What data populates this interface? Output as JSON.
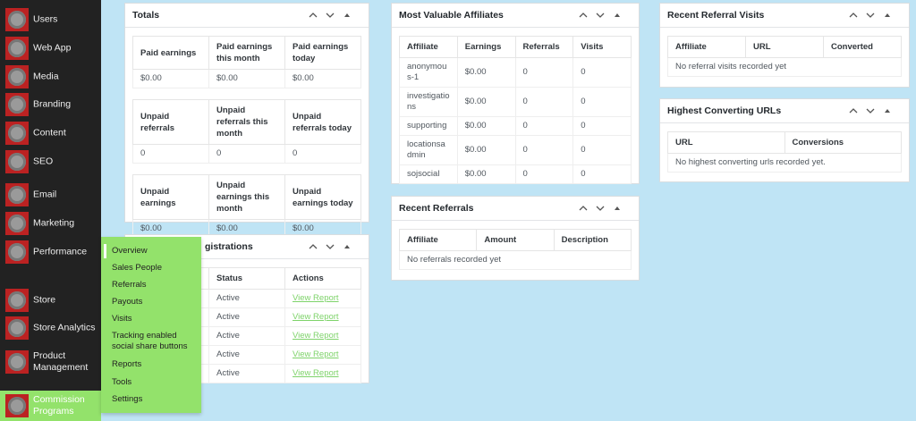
{
  "sidebar": {
    "items": [
      "Users",
      "Web App",
      "Media",
      "Branding",
      "Content",
      "SEO",
      "Email",
      "Marketing",
      "Performance",
      "Store",
      "Store Analytics",
      "Product Management",
      "Commission Programs"
    ]
  },
  "flyout": {
    "items": [
      "Overview",
      "Sales People",
      "Referrals",
      "Payouts",
      "Visits",
      "Tracking enabled social share buttons",
      "Reports",
      "Tools",
      "Settings"
    ]
  },
  "panels": [
    {
      "title": "Totals",
      "tables": [
        {
          "headers": [
            "Paid earnings",
            "Paid earnings this month",
            "Paid earnings today"
          ],
          "rows": [
            [
              "$0.00",
              "$0.00",
              "$0.00"
            ]
          ]
        },
        {
          "headers": [
            "Unpaid referrals",
            "Unpaid referrals this month",
            "Unpaid referrals today"
          ],
          "rows": [
            [
              "0",
              "0",
              "0"
            ]
          ]
        },
        {
          "headers": [
            "Unpaid earnings",
            "Unpaid earnings this month",
            "Unpaid earnings today"
          ],
          "rows": [
            [
              "$0.00",
              "$0.00",
              "$0.00"
            ]
          ]
        }
      ]
    },
    {
      "title": "gistrations",
      "tables": [
        {
          "headers": [
            "Status",
            "Actions"
          ],
          "rows": [
            [
              "Active",
              "View Report"
            ],
            [
              "Active",
              "View Report"
            ],
            [
              "Active",
              "View Report"
            ],
            [
              "Active",
              "View Report"
            ],
            [
              "Active",
              "View Report"
            ]
          ]
        }
      ]
    },
    {
      "title": "Most Valuable Affiliates",
      "tables": [
        {
          "headers": [
            "Affiliate",
            "Earnings",
            "Referrals",
            "Visits"
          ],
          "rows": [
            [
              "anonymous-1",
              "$0.00",
              "0",
              "0"
            ],
            [
              "investigations",
              "$0.00",
              "0",
              "0"
            ],
            [
              "supporting",
              "$0.00",
              "0",
              "0"
            ],
            [
              "locationsadmin",
              "$0.00",
              "0",
              "0"
            ],
            [
              "sojsocial",
              "$0.00",
              "0",
              "0"
            ]
          ]
        }
      ]
    },
    {
      "title": "Recent Referrals",
      "tables": [
        {
          "headers": [
            "Affiliate",
            "Amount",
            "Description"
          ],
          "empty": "No referrals recorded yet"
        }
      ]
    },
    {
      "title": "Recent Referral Visits",
      "tables": [
        {
          "headers": [
            "Affiliate",
            "URL",
            "Converted"
          ],
          "empty": "No referral visits recorded yet"
        }
      ]
    },
    {
      "title": "Highest Converting URLs",
      "tables": [
        {
          "headers": [
            "URL",
            "Conversions"
          ],
          "empty": "No highest converting urls recorded yet."
        }
      ]
    }
  ]
}
